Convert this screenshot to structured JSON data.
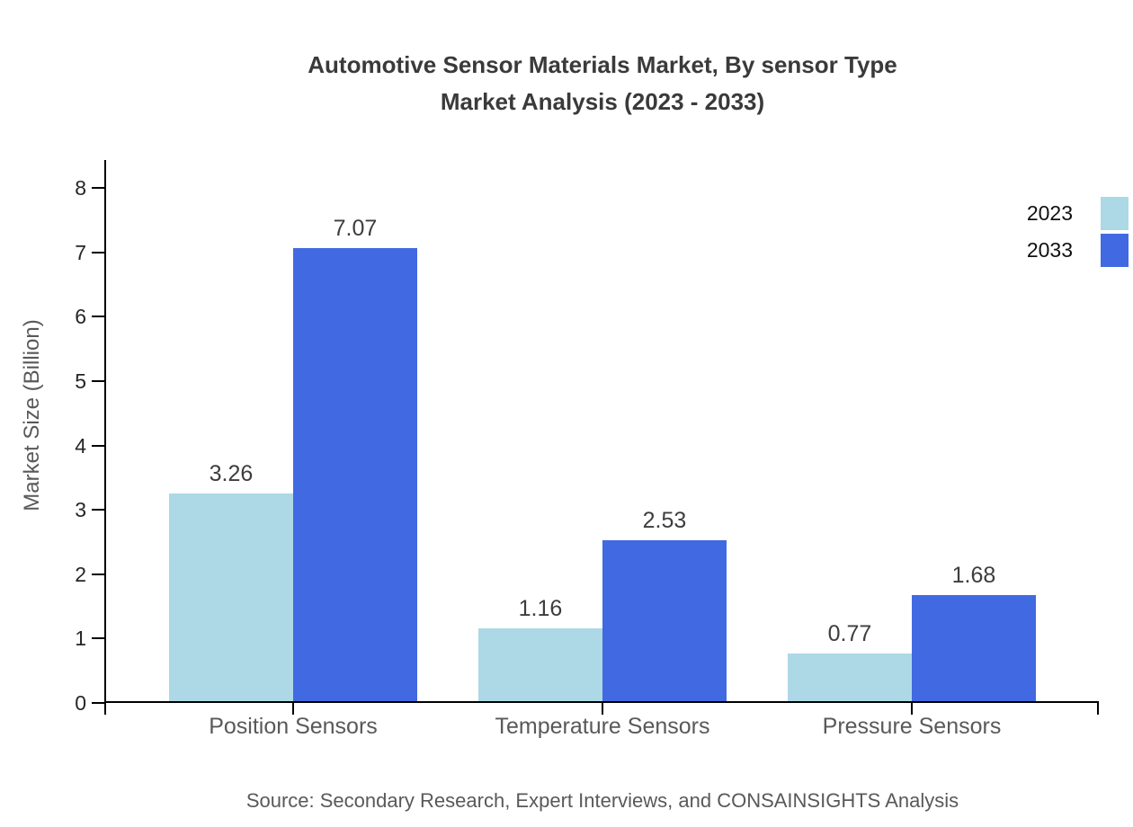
{
  "chart_data": {
    "type": "bar",
    "title_lines": [
      "Automotive Sensor Materials Market, By sensor Type",
      "Market Analysis (2023 - 2033)"
    ],
    "categories": [
      "Position Sensors",
      "Temperature Sensors",
      "Pressure Sensors"
    ],
    "series": [
      {
        "name": "2023",
        "color": "#ADD8E6",
        "values": [
          3.26,
          1.16,
          0.77
        ]
      },
      {
        "name": "2033",
        "color": "#4169E1",
        "values": [
          7.07,
          2.53,
          1.68
        ]
      }
    ],
    "value_labels": [
      "3.26",
      "7.07",
      "1.16",
      "2.53",
      "0.77",
      "1.68"
    ],
    "xlabel": "",
    "ylabel": "Market Size (Billion)",
    "ylim": [
      0,
      8
    ],
    "yticks": [
      0,
      1,
      2,
      3,
      4,
      5,
      6,
      7,
      8
    ],
    "grid": false,
    "legend_position": "top-right"
  },
  "colors": {
    "series_2023": "#ADD8E6",
    "series_2033": "#4169E1",
    "axis": "#000000"
  },
  "source_note": "Source: Secondary Research, Expert Interviews, and CONSAINSIGHTS Analysis"
}
